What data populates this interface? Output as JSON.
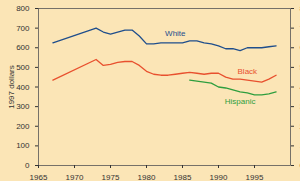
{
  "chart_data": {
    "type": "line",
    "y_label": "1997 dollars",
    "x": [
      1967,
      1973,
      1974,
      1975,
      1976,
      1977,
      1978,
      1979,
      1980,
      1981,
      1982,
      1983,
      1984,
      1985,
      1986,
      1987,
      1988,
      1989,
      1990,
      1991,
      1992,
      1993,
      1994,
      1995,
      1996,
      1997,
      1998
    ],
    "series": [
      {
        "name": "White",
        "color": "#1f4e8c",
        "values": [
          625,
          700,
          680,
          670,
          680,
          690,
          690,
          660,
          620,
          620,
          625,
          625,
          625,
          625,
          635,
          635,
          625,
          620,
          610,
          595,
          595,
          585,
          600,
          600,
          600,
          605,
          610
        ]
      },
      {
        "name": "Black",
        "color": "#e8502e",
        "values": [
          435,
          540,
          510,
          515,
          525,
          530,
          530,
          510,
          480,
          465,
          460,
          460,
          465,
          470,
          475,
          470,
          465,
          470,
          470,
          450,
          440,
          440,
          435,
          430,
          425,
          440,
          460
        ]
      },
      {
        "name": "Hispanic",
        "color": "#2e9e3e",
        "values": [
          null,
          null,
          null,
          null,
          null,
          null,
          null,
          null,
          null,
          null,
          null,
          null,
          null,
          null,
          435,
          430,
          425,
          420,
          400,
          395,
          385,
          375,
          370,
          360,
          360,
          365,
          375
        ]
      }
    ],
    "xlim": [
      1965,
      2000
    ],
    "xticks": [
      1965,
      1970,
      1975,
      1980,
      1985,
      1990,
      1995
    ],
    "ylim": [
      0,
      800
    ],
    "yticks": [
      0,
      100,
      200,
      300,
      400,
      500,
      600,
      700,
      800
    ],
    "legend": "none",
    "grid": false
  }
}
